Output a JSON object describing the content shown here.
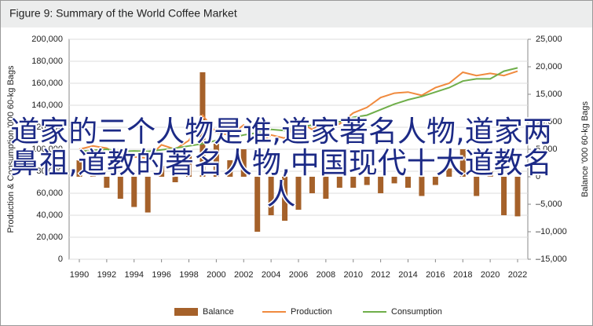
{
  "chart_data": {
    "type": "bar-line",
    "title": "Figure 9: Summary of the World Coffee Market",
    "y_label": "Production & Consumption '000 60-kg Bags",
    "y2_label": "Balance '000 60-kg Bags",
    "x": [
      1990,
      1991,
      1992,
      1993,
      1994,
      1995,
      1996,
      1997,
      1998,
      1999,
      2000,
      2001,
      2002,
      2003,
      2004,
      2005,
      2006,
      2007,
      2008,
      2009,
      2010,
      2011,
      2012,
      2013,
      2014,
      2015,
      2016,
      2017,
      2018,
      2019,
      2020,
      2021,
      2022
    ],
    "xlim": [
      1990,
      2022
    ],
    "xticks": [
      1990,
      1992,
      1994,
      1996,
      1998,
      2000,
      2002,
      2004,
      2006,
      2008,
      2010,
      2012,
      2014,
      2016,
      2018,
      2020,
      2022
    ],
    "ylim": [
      0,
      200000
    ],
    "yticks": [
      0,
      {
        "value": 20000,
        "label": "20,000"
      },
      {
        "value": 40000,
        "label": "40,000"
      },
      {
        "value": 60000,
        "label": "60,000"
      },
      {
        "value": 80000,
        "label": "80,000"
      },
      {
        "value": 100000,
        "label": "100,000"
      },
      {
        "value": 120000,
        "label": "120,000"
      },
      {
        "value": 140000,
        "label": "140,000"
      },
      {
        "value": 160000,
        "label": "160,000"
      },
      {
        "value": 180000,
        "label": "180,000"
      },
      {
        "value": 200000,
        "label": "200,000"
      }
    ],
    "y2lim": [
      -15000,
      25000
    ],
    "y2ticks": [
      {
        "value": -15000,
        "label": "–15,000"
      },
      {
        "value": -10000,
        "label": "–10,000"
      },
      {
        "value": -5000,
        "label": "–5,000"
      },
      0,
      {
        "value": 5000,
        "label": "5,000"
      },
      {
        "value": 10000,
        "label": "10,000"
      },
      {
        "value": 15000,
        "label": "15,000"
      },
      {
        "value": 20000,
        "label": "20,000"
      },
      {
        "value": 25000,
        "label": "25,000"
      }
    ],
    "series": [
      {
        "name": "Balance",
        "type": "bar",
        "axis": "y2",
        "color": "#a5612a",
        "values": [
          3000,
          4000,
          -2000,
          -4000,
          -5500,
          -6500,
          2000,
          -1000,
          4000,
          19000,
          6000,
          3000,
          5000,
          -10000,
          -7000,
          -8000,
          -6000,
          -3000,
          -4000,
          -2000,
          -2000,
          -1500,
          -3000,
          -1200,
          -2000,
          -3500,
          -1500,
          1500,
          5000,
          -3500,
          1000,
          -7000,
          -7200
        ]
      },
      {
        "name": "Production",
        "type": "line",
        "color": "#f08a3e",
        "values": [
          100000,
          103000,
          101000,
          94000,
          93000,
          92000,
          104000,
          100000,
          108000,
          131000,
          115000,
          113000,
          122000,
          105000,
          113000,
          110000,
          125000,
          118000,
          125000,
          123000,
          133000,
          138000,
          147000,
          151000,
          152000,
          149000,
          156000,
          160000,
          170000,
          167000,
          169000,
          167000,
          171000
        ]
      },
      {
        "name": "Consumption",
        "type": "line",
        "color": "#6fae4a",
        "values": [
          98000,
          99000,
          100000,
          98000,
          98500,
          98000,
          99500,
          101000,
          103000,
          105000,
          108000,
          110000,
          113000,
          115000,
          118000,
          117000,
          120000,
          122000,
          126000,
          125000,
          129000,
          131000,
          136000,
          141000,
          145000,
          148000,
          152000,
          156000,
          162000,
          164000,
          164000,
          171000,
          174000
        ]
      }
    ]
  },
  "overlay_text": "道家的三个人物是谁,道家著名人物,道家两鼻祖,道教的著名人物,中国现代十大道教名人"
}
